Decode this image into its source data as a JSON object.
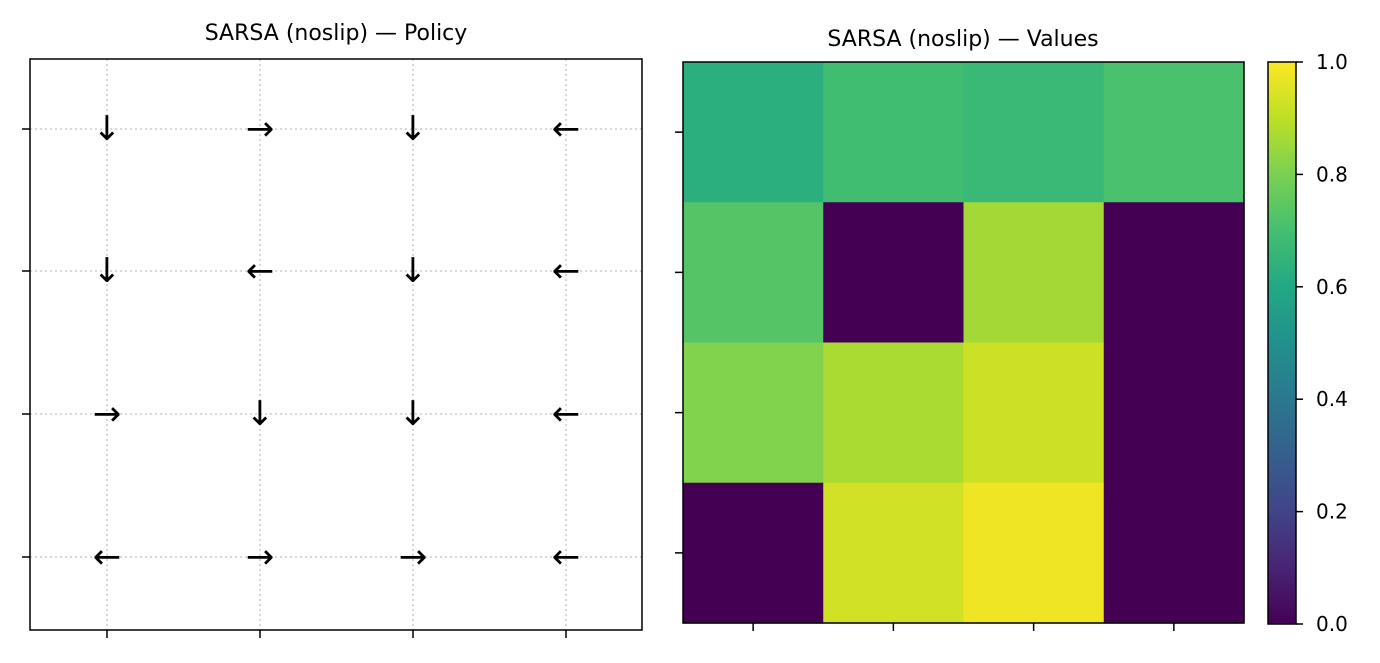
{
  "chart_data": [
    {
      "type": "table",
      "title": "SARSA (noslip) — Policy",
      "grid": true,
      "rows": 4,
      "cols": 4,
      "policy": [
        [
          "↓",
          "→",
          "↓",
          "←"
        ],
        [
          "↓",
          "←",
          "↓",
          "←"
        ],
        [
          "→",
          "↓",
          "↓",
          "←"
        ],
        [
          "←",
          "→",
          "→",
          "←"
        ]
      ]
    },
    {
      "type": "heatmap",
      "title": "SARSA (noslip) — Values",
      "colormap": "viridis",
      "zlim": [
        0,
        1
      ],
      "colorbar_ticks": [
        "0.0",
        "0.2",
        "0.4",
        "0.6",
        "0.8",
        "1.0"
      ],
      "values": [
        [
          0.63,
          0.69,
          0.67,
          0.71
        ],
        [
          0.73,
          0.0,
          0.86,
          0.0
        ],
        [
          0.81,
          0.87,
          0.92,
          0.0
        ],
        [
          0.0,
          0.93,
          0.98,
          0.0
        ]
      ]
    }
  ]
}
